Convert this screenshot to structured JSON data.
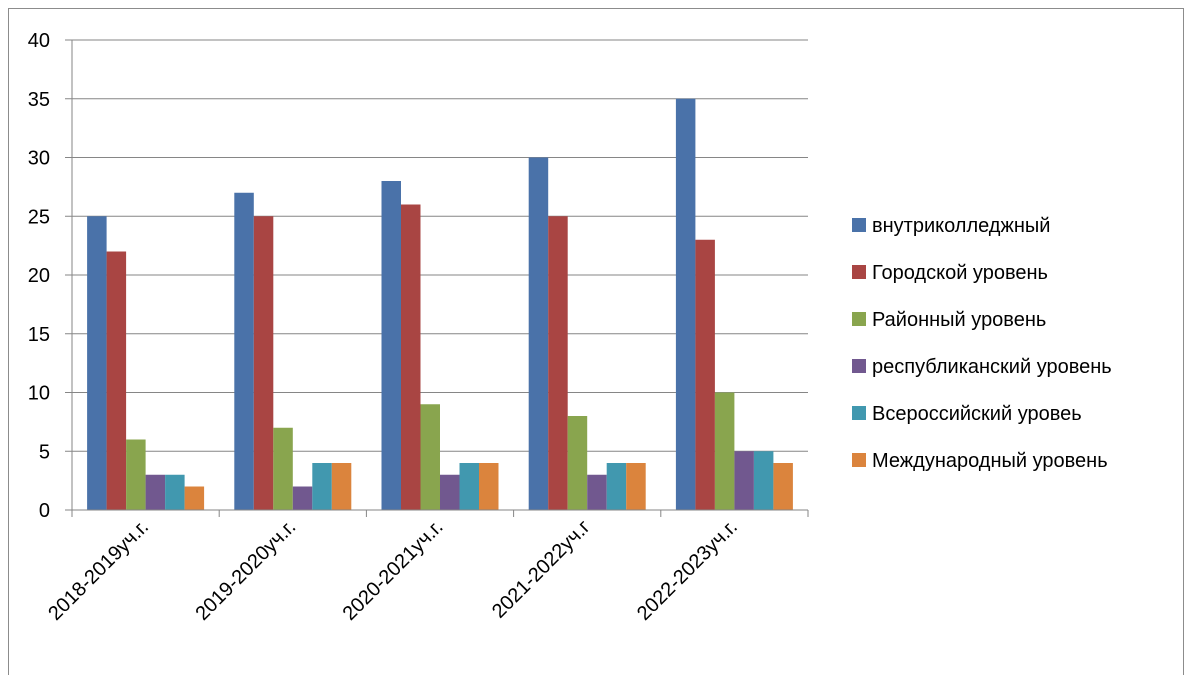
{
  "chart_data": {
    "type": "bar",
    "categories": [
      "2018-2019уч.г.",
      "2019-2020уч.г.",
      "2020-2021уч.г.",
      "2021-2022уч.г",
      "2022-2023уч.г."
    ],
    "series": [
      {
        "name": "внутриколледжный",
        "color": "#4A72A9",
        "values": [
          25,
          27,
          28,
          30,
          35
        ]
      },
      {
        "name": "Городской уровень",
        "color": "#A94543",
        "values": [
          22,
          25,
          26,
          25,
          23
        ]
      },
      {
        "name": "Районный уровень",
        "color": "#89A54E",
        "values": [
          6,
          7,
          9,
          8,
          10
        ]
      },
      {
        "name": "республиканский уровень",
        "color": "#71588F",
        "values": [
          3,
          2,
          3,
          3,
          5
        ]
      },
      {
        "name": "Всероссийский уровеь",
        "color": "#4198AF",
        "values": [
          3,
          4,
          4,
          4,
          5
        ]
      },
      {
        "name": "Международный уровень",
        "color": "#DB843D",
        "values": [
          2,
          4,
          4,
          4,
          4
        ]
      }
    ],
    "yticks": [
      "0",
      "5",
      "10",
      "15",
      "20",
      "25",
      "30",
      "35",
      "40"
    ],
    "ylim": [
      0,
      40
    ],
    "grid": true,
    "legend_position": "right"
  }
}
